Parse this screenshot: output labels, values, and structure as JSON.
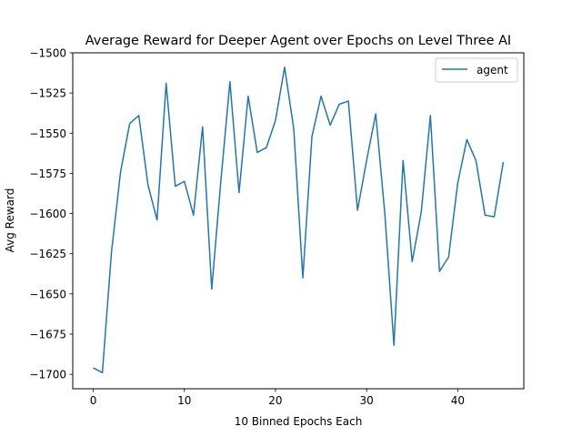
{
  "chart_data": {
    "type": "line",
    "title": "Average Reward for Deeper Agent over Epochs on Level Three AI",
    "xlabel": "10 Binned Epochs Each",
    "ylabel": "Avg Reward",
    "xlim": [
      -2.25,
      47.25
    ],
    "ylim": [
      -1709,
      -1500
    ],
    "xticks": [
      0,
      10,
      20,
      30,
      40
    ],
    "yticks": [
      -1500,
      -1525,
      -1550,
      -1575,
      -1600,
      -1625,
      -1650,
      -1675,
      -1700
    ],
    "grid": false,
    "legend_position": "top-right",
    "series": [
      {
        "name": "agent",
        "color": "#1f77b4",
        "x": [
          0,
          1,
          2,
          3,
          4,
          5,
          6,
          7,
          8,
          9,
          10,
          11,
          12,
          13,
          14,
          15,
          16,
          17,
          18,
          19,
          20,
          21,
          22,
          23,
          24,
          25,
          26,
          27,
          28,
          29,
          30,
          31,
          32,
          33,
          34,
          35,
          36,
          37,
          38,
          39,
          40,
          41,
          42,
          43,
          44,
          45
        ],
        "values": [
          -1696,
          -1699,
          -1624,
          -1574,
          -1544,
          -1539,
          -1582,
          -1604,
          -1519,
          -1583,
          -1580,
          -1601,
          -1546,
          -1647,
          -1580,
          -1518,
          -1587,
          -1527,
          -1562,
          -1559,
          -1542,
          -1509,
          -1547,
          -1640,
          -1552,
          -1527,
          -1545,
          -1532,
          -1530,
          -1598,
          -1567,
          -1538,
          -1600,
          -1682,
          -1567,
          -1630,
          -1599,
          -1539,
          -1636,
          -1627,
          -1581,
          -1554,
          -1567,
          -1601,
          -1602,
          -1568
        ]
      }
    ]
  }
}
